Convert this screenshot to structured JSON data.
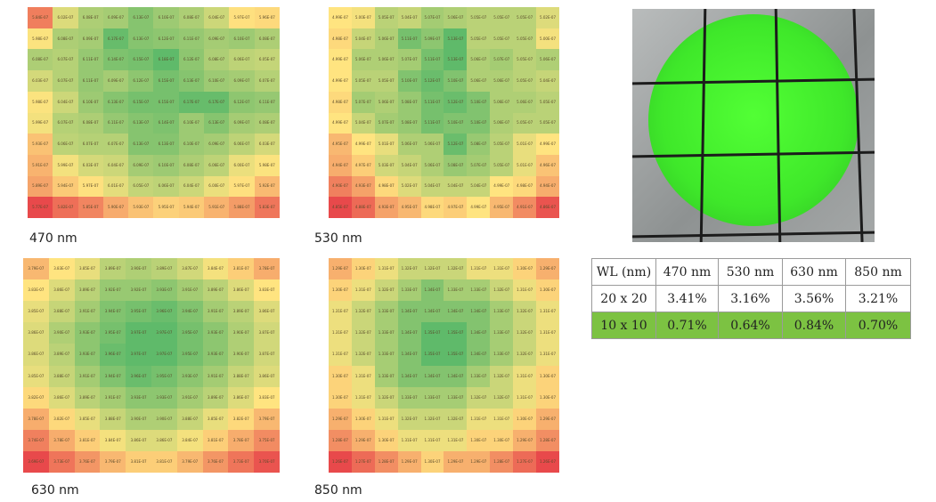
{
  "heatmaps": [
    {
      "label": "470 nm",
      "prefix": "",
      "suffix": "E-07",
      "values": [
        [
          "5.84",
          "6.02",
          "6.08",
          "6.09",
          "6.13",
          "6.10",
          "6.08",
          "6.04",
          "5.97",
          "5.96"
        ],
        [
          "5.98",
          "6.08",
          "6.09",
          "6.17",
          "6.13",
          "6.12",
          "6.11",
          "6.09",
          "6.10",
          "6.08"
        ],
        [
          "6.08",
          "6.07",
          "6.11",
          "6.14",
          "6.15",
          "6.18",
          "6.12",
          "6.08",
          "6.06",
          "6.05"
        ],
        [
          "6.03",
          "6.07",
          "6.11",
          "6.09",
          "6.12",
          "6.15",
          "6.13",
          "6.10",
          "6.09",
          "6.07"
        ],
        [
          "5.98",
          "6.04",
          "6.10",
          "6.13",
          "6.15",
          "6.15",
          "6.17",
          "6.17",
          "6.12",
          "6.11"
        ],
        [
          "5.99",
          "6.07",
          "6.08",
          "6.11",
          "6.13",
          "6.14",
          "6.10",
          "6.13",
          "6.09",
          "6.08"
        ],
        [
          "5.93",
          "6.06",
          "6.07",
          "6.07",
          "6.13",
          "6.13",
          "6.10",
          "6.09",
          "6.06",
          "6.03"
        ],
        [
          "5.91",
          "5.99",
          "6.03",
          "6.04",
          "6.09",
          "6.10",
          "6.08",
          "6.06",
          "6.00",
          "5.98"
        ],
        [
          "5.89",
          "5.94",
          "5.97",
          "6.01",
          "6.05",
          "6.06",
          "6.04",
          "6.00",
          "5.97",
          "5.92"
        ],
        [
          "5.77",
          "5.82",
          "5.85",
          "5.90",
          "5.93",
          "5.95",
          "5.94",
          "5.91",
          "5.88",
          "5.83"
        ]
      ]
    },
    {
      "label": "530 nm",
      "prefix": "",
      "suffix": "E-07",
      "values": [
        [
          "4.99",
          "5.00",
          "5.05",
          "5.04",
          "5.07",
          "5.06",
          "5.05",
          "5.05",
          "5.05",
          "5.02"
        ],
        [
          "4.98",
          "5.04",
          "5.06",
          "5.11",
          "5.09",
          "5.13",
          "5.05",
          "5.05",
          "5.05",
          "5.00"
        ],
        [
          "4.99",
          "5.06",
          "5.06",
          "5.07",
          "5.11",
          "5.13",
          "5.06",
          "5.07",
          "5.05",
          "5.06"
        ],
        [
          "4.99",
          "5.05",
          "5.05",
          "5.10",
          "5.12",
          "5.10",
          "5.06",
          "5.06",
          "5.05",
          "5.04"
        ],
        [
          "4.98",
          "5.07",
          "5.06",
          "5.08",
          "5.11",
          "5.12",
          "5.10",
          "5.06",
          "5.06",
          "5.05"
        ],
        [
          "4.99",
          "5.04",
          "5.07",
          "5.08",
          "5.11",
          "5.10",
          "5.10",
          "5.06",
          "5.05",
          "5.05"
        ],
        [
          "4.95",
          "4.99",
          "5.01",
          "5.06",
          "5.06",
          "5.12",
          "5.08",
          "5.05",
          "5.01",
          "4.99"
        ],
        [
          "4.94",
          "4.97",
          "5.03",
          "5.04",
          "5.06",
          "5.08",
          "5.07",
          "5.05",
          "5.01",
          "4.96"
        ],
        [
          "4.90",
          "4.93",
          "4.98",
          "5.02",
          "5.04",
          "5.04",
          "5.04",
          "4.99",
          "4.98",
          "4.94"
        ],
        [
          "4.85",
          "4.88",
          "4.93",
          "4.95",
          "4.98",
          "4.97",
          "4.99",
          "4.95",
          "4.91",
          "4.86"
        ]
      ]
    },
    {
      "label": "630 nm",
      "prefix": "",
      "suffix": "E-07",
      "values": [
        [
          "3.79",
          "3.83",
          "3.85",
          "3.89",
          "3.90",
          "3.89",
          "3.87",
          "3.84",
          "3.81",
          "3.78"
        ],
        [
          "3.83",
          "3.86",
          "3.89",
          "3.92",
          "3.92",
          "3.93",
          "3.91",
          "3.89",
          "3.86",
          "3.83"
        ],
        [
          "3.85",
          "3.88",
          "3.91",
          "3.94",
          "3.95",
          "3.96",
          "3.94",
          "3.91",
          "3.89",
          "3.86"
        ],
        [
          "3.86",
          "3.90",
          "3.93",
          "3.95",
          "3.97",
          "3.97",
          "3.95",
          "3.93",
          "3.90",
          "3.87"
        ],
        [
          "3.86",
          "3.89",
          "3.93",
          "3.96",
          "3.97",
          "3.97",
          "3.95",
          "3.93",
          "3.90",
          "3.87"
        ],
        [
          "3.85",
          "3.88",
          "3.91",
          "3.94",
          "3.96",
          "3.95",
          "3.93",
          "3.91",
          "3.88",
          "3.86"
        ],
        [
          "3.82",
          "3.86",
          "3.89",
          "3.91",
          "3.93",
          "3.93",
          "3.91",
          "3.89",
          "3.86",
          "3.83"
        ],
        [
          "3.78",
          "3.82",
          "3.85",
          "3.88",
          "3.90",
          "3.90",
          "3.88",
          "3.85",
          "3.82",
          "3.79"
        ],
        [
          "3.74",
          "3.78",
          "3.81",
          "3.84",
          "3.86",
          "3.86",
          "3.84",
          "3.81",
          "3.78",
          "3.75"
        ],
        [
          "3.69",
          "3.73",
          "3.76",
          "3.79",
          "3.81",
          "3.81",
          "3.79",
          "3.76",
          "3.73",
          "3.70"
        ]
      ]
    },
    {
      "label": "850 nm",
      "prefix": "",
      "suffix": "E-07",
      "values": [
        [
          "1.29",
          "1.30",
          "1.31",
          "1.32",
          "1.32",
          "1.32",
          "1.31",
          "1.31",
          "1.30",
          "1.29"
        ],
        [
          "1.30",
          "1.31",
          "1.32",
          "1.33",
          "1.34",
          "1.33",
          "1.33",
          "1.32",
          "1.31",
          "1.30"
        ],
        [
          "1.31",
          "1.32",
          "1.33",
          "1.34",
          "1.34",
          "1.34",
          "1.34",
          "1.33",
          "1.32",
          "1.31"
        ],
        [
          "1.31",
          "1.32",
          "1.33",
          "1.34",
          "1.35",
          "1.35",
          "1.34",
          "1.33",
          "1.32",
          "1.31"
        ],
        [
          "1.31",
          "1.32",
          "1.33",
          "1.34",
          "1.35",
          "1.35",
          "1.34",
          "1.33",
          "1.32",
          "1.31"
        ],
        [
          "1.30",
          "1.31",
          "1.33",
          "1.34",
          "1.34",
          "1.34",
          "1.33",
          "1.32",
          "1.31",
          "1.30"
        ],
        [
          "1.30",
          "1.31",
          "1.32",
          "1.33",
          "1.33",
          "1.33",
          "1.32",
          "1.32",
          "1.31",
          "1.30"
        ],
        [
          "1.29",
          "1.30",
          "1.31",
          "1.32",
          "1.32",
          "1.32",
          "1.31",
          "1.31",
          "1.30",
          "1.29"
        ],
        [
          "1.28",
          "1.29",
          "1.30",
          "1.31",
          "1.31",
          "1.31",
          "1.30",
          "1.30",
          "1.29",
          "1.28"
        ],
        [
          "1.26",
          "1.27",
          "1.28",
          "1.29",
          "1.30",
          "1.29",
          "1.29",
          "1.28",
          "1.27",
          "1.26"
        ]
      ]
    }
  ],
  "colors": {
    "low": "#e8494b",
    "mid": "#ffe480",
    "high": "#5fba6a",
    "highlight_row": "#7cc242"
  },
  "table": {
    "header": [
      "WL (nm)",
      "470 nm",
      "530 nm",
      "630 nm",
      "850 nm"
    ],
    "rows": [
      [
        "20 x 20",
        "3.41%",
        "3.16%",
        "3.56%",
        "3.21%"
      ],
      [
        "10 x 10",
        "0.71%",
        "0.64%",
        "0.84%",
        "0.70%"
      ]
    ],
    "highlight_row": 1
  }
}
